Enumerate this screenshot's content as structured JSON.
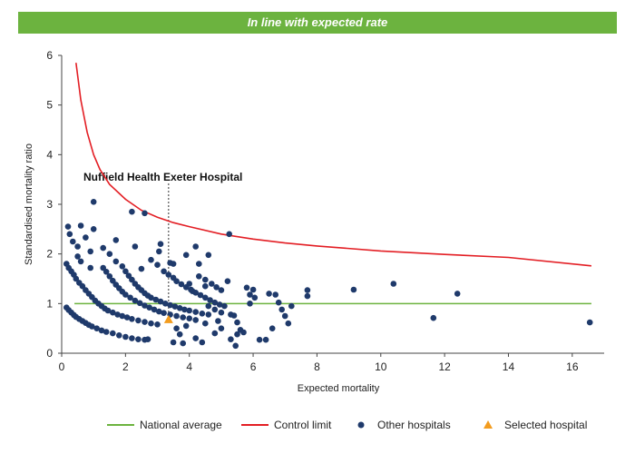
{
  "banner": {
    "text": "In line with expected rate"
  },
  "chart_data": {
    "type": "scatter",
    "xlabel": "Expected mortality",
    "ylabel": "Standardised mortality ratio",
    "xlim": [
      0,
      17
    ],
    "ylim": [
      0,
      6
    ],
    "x_ticks": [
      0,
      2,
      4,
      6,
      8,
      10,
      12,
      14,
      16
    ],
    "y_ticks": [
      0,
      1,
      2,
      3,
      4,
      5,
      6
    ],
    "grid": false,
    "legend_position": "bottom",
    "colors": {
      "national_average": "#6cb33f",
      "control_limit": "#e31e24",
      "other_hospitals": "#1f3a6b",
      "selected_hospital": "#f39c1e"
    },
    "annotation": {
      "text": "Nuffield Health Exeter Hospital",
      "x": 3.35,
      "y": 0.68
    },
    "series": [
      {
        "name": "National average",
        "kind": "line",
        "x": [
          0.4,
          16.6
        ],
        "y": [
          1,
          1
        ]
      },
      {
        "name": "Control limit",
        "kind": "curve",
        "x": [
          0.45,
          0.6,
          0.8,
          1.0,
          1.2,
          1.5,
          2.0,
          2.5,
          3.0,
          3.5,
          4.0,
          5.0,
          6.0,
          7.0,
          8.0,
          10.0,
          12.0,
          14.0,
          16.6
        ],
        "y": [
          5.85,
          5.1,
          4.45,
          4.0,
          3.7,
          3.4,
          3.1,
          2.88,
          2.74,
          2.63,
          2.55,
          2.4,
          2.3,
          2.22,
          2.16,
          2.06,
          1.99,
          1.93,
          1.76
        ]
      },
      {
        "name": "Other hospitals",
        "kind": "points",
        "points": [
          [
            0.2,
            2.55
          ],
          [
            0.25,
            2.4
          ],
          [
            0.35,
            2.25
          ],
          [
            0.5,
            2.15
          ],
          [
            0.6,
            2.57
          ],
          [
            0.75,
            2.33
          ],
          [
            1.0,
            3.05
          ],
          [
            1.0,
            2.5
          ],
          [
            0.9,
            2.05
          ],
          [
            1.3,
            2.12
          ],
          [
            1.7,
            2.28
          ],
          [
            2.2,
            2.85
          ],
          [
            2.6,
            2.82
          ],
          [
            2.3,
            2.15
          ],
          [
            2.5,
            1.7
          ],
          [
            2.8,
            1.88
          ],
          [
            3.1,
            2.2
          ],
          [
            3.05,
            2.05
          ],
          [
            3.5,
            1.8
          ],
          [
            3.0,
            1.78
          ],
          [
            3.9,
            1.98
          ],
          [
            4.2,
            2.15
          ],
          [
            4.3,
            1.8
          ],
          [
            4.6,
            1.98
          ],
          [
            5.25,
            2.4
          ],
          [
            4.0,
            1.4
          ],
          [
            4.5,
            1.35
          ],
          [
            4.1,
            1.25
          ],
          [
            0.15,
            1.8
          ],
          [
            0.22,
            1.72
          ],
          [
            0.3,
            1.65
          ],
          [
            0.38,
            1.58
          ],
          [
            0.45,
            1.5
          ],
          [
            0.55,
            1.42
          ],
          [
            0.65,
            1.35
          ],
          [
            0.75,
            1.27
          ],
          [
            0.85,
            1.2
          ],
          [
            0.95,
            1.13
          ],
          [
            1.05,
            1.06
          ],
          [
            1.15,
            1.0
          ],
          [
            1.25,
            0.95
          ],
          [
            1.35,
            0.9
          ],
          [
            1.45,
            0.86
          ],
          [
            1.6,
            0.82
          ],
          [
            1.75,
            0.78
          ],
          [
            1.9,
            0.75
          ],
          [
            2.05,
            0.72
          ],
          [
            2.2,
            0.69
          ],
          [
            2.4,
            0.66
          ],
          [
            2.6,
            0.63
          ],
          [
            2.8,
            0.6
          ],
          [
            3.0,
            0.58
          ],
          [
            0.15,
            0.92
          ],
          [
            0.22,
            0.87
          ],
          [
            0.3,
            0.82
          ],
          [
            0.38,
            0.77
          ],
          [
            0.45,
            0.73
          ],
          [
            0.55,
            0.69
          ],
          [
            0.65,
            0.65
          ],
          [
            0.75,
            0.61
          ],
          [
            0.85,
            0.57
          ],
          [
            0.95,
            0.54
          ],
          [
            1.1,
            0.5
          ],
          [
            1.25,
            0.46
          ],
          [
            1.4,
            0.43
          ],
          [
            1.6,
            0.4
          ],
          [
            1.8,
            0.36
          ],
          [
            2.0,
            0.33
          ],
          [
            2.2,
            0.3
          ],
          [
            2.4,
            0.28
          ],
          [
            2.6,
            0.27
          ],
          [
            2.7,
            0.28
          ],
          [
            1.3,
            1.72
          ],
          [
            1.4,
            1.64
          ],
          [
            1.5,
            1.55
          ],
          [
            1.6,
            1.46
          ],
          [
            1.7,
            1.38
          ],
          [
            1.8,
            1.31
          ],
          [
            1.9,
            1.24
          ],
          [
            2.0,
            1.18
          ],
          [
            2.15,
            1.12
          ],
          [
            2.3,
            1.06
          ],
          [
            2.45,
            1.01
          ],
          [
            2.6,
            0.96
          ],
          [
            2.75,
            0.92
          ],
          [
            2.9,
            0.88
          ],
          [
            3.05,
            0.84
          ],
          [
            3.2,
            0.81
          ],
          [
            3.4,
            0.78
          ],
          [
            3.6,
            0.75
          ],
          [
            3.8,
            0.72
          ],
          [
            4.0,
            0.7
          ],
          [
            4.2,
            0.67
          ],
          [
            0.5,
            1.95
          ],
          [
            0.6,
            1.85
          ],
          [
            0.9,
            1.72
          ],
          [
            1.5,
            2.0
          ],
          [
            1.7,
            1.85
          ],
          [
            1.9,
            1.75
          ],
          [
            2.0,
            1.65
          ],
          [
            2.1,
            1.56
          ],
          [
            2.2,
            1.48
          ],
          [
            2.3,
            1.4
          ],
          [
            2.4,
            1.33
          ],
          [
            2.5,
            1.27
          ],
          [
            2.6,
            1.21
          ],
          [
            2.7,
            1.16
          ],
          [
            2.8,
            1.12
          ],
          [
            2.95,
            1.08
          ],
          [
            3.1,
            1.04
          ],
          [
            3.25,
            1.0
          ],
          [
            3.4,
            0.97
          ],
          [
            3.55,
            0.94
          ],
          [
            3.7,
            0.91
          ],
          [
            3.85,
            0.88
          ],
          [
            4.0,
            0.86
          ],
          [
            4.2,
            0.83
          ],
          [
            4.4,
            0.8
          ],
          [
            4.6,
            0.78
          ],
          [
            3.2,
            1.65
          ],
          [
            3.35,
            1.58
          ],
          [
            3.5,
            1.52
          ],
          [
            3.6,
            1.45
          ],
          [
            3.75,
            1.39
          ],
          [
            3.9,
            1.33
          ],
          [
            4.05,
            1.28
          ],
          [
            4.2,
            1.22
          ],
          [
            4.35,
            1.17
          ],
          [
            4.5,
            1.12
          ],
          [
            4.65,
            1.07
          ],
          [
            4.8,
            1.02
          ],
          [
            4.95,
            0.98
          ],
          [
            5.1,
            0.95
          ],
          [
            4.3,
            1.55
          ],
          [
            4.5,
            1.48
          ],
          [
            4.7,
            1.4
          ],
          [
            4.85,
            1.33
          ],
          [
            5.0,
            1.27
          ],
          [
            5.2,
            1.45
          ],
          [
            4.6,
            0.95
          ],
          [
            4.8,
            0.88
          ],
          [
            5.0,
            0.82
          ],
          [
            5.3,
            0.78
          ],
          [
            5.4,
            0.76
          ],
          [
            5.5,
            0.62
          ],
          [
            5.6,
            0.47
          ],
          [
            5.7,
            0.42
          ],
          [
            5.3,
            0.28
          ],
          [
            5.45,
            0.15
          ],
          [
            5.5,
            0.38
          ],
          [
            3.4,
            1.82
          ],
          [
            3.6,
            0.5
          ],
          [
            3.7,
            0.38
          ],
          [
            3.5,
            0.22
          ],
          [
            3.8,
            0.2
          ],
          [
            4.2,
            0.3
          ],
          [
            4.4,
            0.22
          ],
          [
            4.8,
            0.4
          ],
          [
            5.0,
            0.5
          ],
          [
            4.5,
            0.6
          ],
          [
            4.9,
            0.65
          ],
          [
            3.9,
            0.55
          ],
          [
            5.8,
            1.32
          ],
          [
            5.9,
            1.18
          ],
          [
            6.0,
            1.28
          ],
          [
            6.05,
            1.12
          ],
          [
            5.9,
            1.0
          ],
          [
            6.5,
            1.2
          ],
          [
            6.7,
            1.18
          ],
          [
            6.8,
            1.02
          ],
          [
            6.9,
            0.88
          ],
          [
            7.0,
            0.75
          ],
          [
            7.2,
            0.95
          ],
          [
            7.1,
            0.6
          ],
          [
            6.6,
            0.5
          ],
          [
            6.4,
            0.27
          ],
          [
            6.2,
            0.27
          ],
          [
            7.7,
            1.27
          ],
          [
            7.7,
            1.15
          ],
          [
            9.15,
            1.28
          ],
          [
            10.4,
            1.4
          ],
          [
            11.65,
            0.71
          ],
          [
            12.4,
            1.2
          ],
          [
            16.55,
            0.62
          ]
        ]
      },
      {
        "name": "Selected hospital",
        "kind": "points",
        "points": [
          [
            3.35,
            0.68
          ]
        ]
      }
    ]
  },
  "legend": {
    "national_average": "National average",
    "control_limit": "Control limit",
    "other_hospitals": "Other hospitals",
    "selected_hospital": "Selected hospital"
  }
}
